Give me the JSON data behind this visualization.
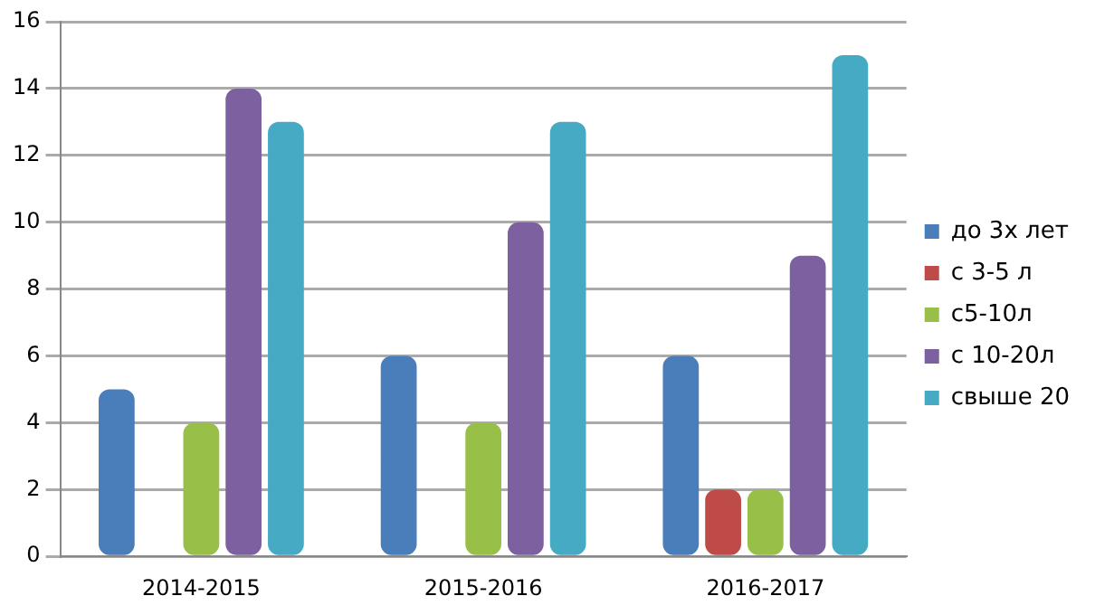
{
  "chart_data": {
    "type": "bar",
    "categories": [
      "2014-2015",
      "2015-2016",
      "2016-2017"
    ],
    "series": [
      {
        "name": "до 3х лет",
        "color": "#4a7ebb",
        "values": [
          5,
          6,
          6
        ]
      },
      {
        "name": "с 3-5 л",
        "color": "#be4b48",
        "values": [
          0,
          0,
          2
        ]
      },
      {
        "name": "с5-10л",
        "color": "#98c048",
        "values": [
          4,
          4,
          2
        ]
      },
      {
        "name": "с 10-20л",
        "color": "#7d60a0",
        "values": [
          14,
          10,
          9
        ]
      },
      {
        "name": "свыше 20",
        "color": "#46aac5",
        "values": [
          13,
          13,
          15
        ]
      }
    ],
    "ylim": [
      0,
      16
    ],
    "yticks": [
      0,
      2,
      4,
      6,
      8,
      10,
      12,
      14,
      16
    ],
    "grid": "y",
    "legend": "right"
  }
}
